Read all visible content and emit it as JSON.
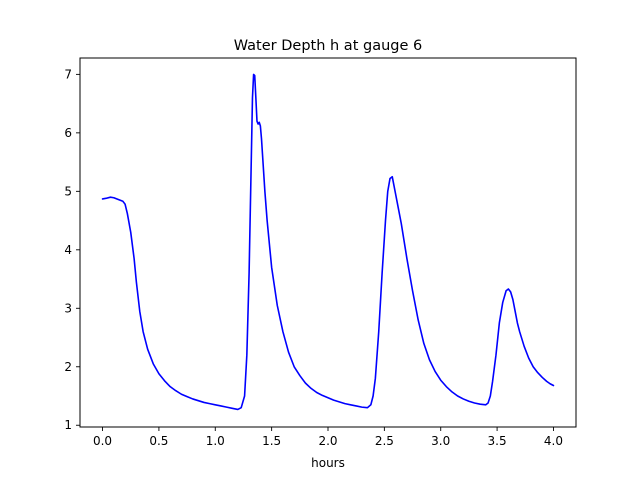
{
  "chart_data": {
    "type": "line",
    "title": "Water Depth h at gauge 6",
    "xlabel": "hours",
    "ylabel": "",
    "xlim": [
      -0.2,
      4.2
    ],
    "ylim": [
      0.97,
      7.28
    ],
    "xticks": [
      0.0,
      0.5,
      1.0,
      1.5,
      2.0,
      2.5,
      3.0,
      3.5,
      4.0
    ],
    "xtick_labels": [
      "0.0",
      "0.5",
      "1.0",
      "1.5",
      "2.0",
      "2.5",
      "3.0",
      "3.5",
      "4.0"
    ],
    "yticks": [
      1,
      2,
      3,
      4,
      5,
      6,
      7
    ],
    "ytick_labels": [
      "1",
      "2",
      "3",
      "4",
      "5",
      "6",
      "7"
    ],
    "grid": false,
    "series": [
      {
        "color": "#0000ff",
        "x": [
          0.0,
          0.03,
          0.07,
          0.1,
          0.14,
          0.18,
          0.2,
          0.22,
          0.25,
          0.28,
          0.3,
          0.33,
          0.36,
          0.4,
          0.45,
          0.5,
          0.55,
          0.6,
          0.65,
          0.7,
          0.75,
          0.8,
          0.85,
          0.9,
          0.95,
          1.0,
          1.05,
          1.1,
          1.15,
          1.2,
          1.23,
          1.26,
          1.28,
          1.3,
          1.32,
          1.33,
          1.34,
          1.35,
          1.36,
          1.37,
          1.38,
          1.39,
          1.4,
          1.41,
          1.42,
          1.44,
          1.46,
          1.5,
          1.55,
          1.6,
          1.65,
          1.7,
          1.75,
          1.8,
          1.85,
          1.9,
          1.95,
          2.0,
          2.05,
          2.1,
          2.15,
          2.2,
          2.25,
          2.3,
          2.35,
          2.38,
          2.4,
          2.42,
          2.45,
          2.48,
          2.51,
          2.53,
          2.55,
          2.57,
          2.58,
          2.6,
          2.62,
          2.65,
          2.7,
          2.75,
          2.8,
          2.85,
          2.9,
          2.95,
          3.0,
          3.05,
          3.1,
          3.15,
          3.2,
          3.25,
          3.3,
          3.35,
          3.4,
          3.42,
          3.44,
          3.46,
          3.49,
          3.52,
          3.55,
          3.58,
          3.6,
          3.62,
          3.64,
          3.66,
          3.68,
          3.7,
          3.74,
          3.78,
          3.82,
          3.86,
          3.9,
          3.94,
          3.97,
          4.0
        ],
        "y": [
          4.87,
          4.88,
          4.9,
          4.89,
          4.86,
          4.83,
          4.78,
          4.62,
          4.3,
          3.85,
          3.45,
          2.95,
          2.6,
          2.3,
          2.05,
          1.88,
          1.76,
          1.66,
          1.59,
          1.53,
          1.49,
          1.45,
          1.42,
          1.39,
          1.37,
          1.35,
          1.33,
          1.31,
          1.29,
          1.27,
          1.3,
          1.5,
          2.2,
          3.6,
          5.6,
          6.6,
          7.0,
          6.98,
          6.6,
          6.2,
          6.15,
          6.18,
          6.12,
          5.9,
          5.6,
          5.0,
          4.5,
          3.7,
          3.05,
          2.6,
          2.25,
          2.0,
          1.85,
          1.72,
          1.63,
          1.56,
          1.51,
          1.47,
          1.43,
          1.4,
          1.37,
          1.35,
          1.33,
          1.31,
          1.3,
          1.35,
          1.5,
          1.8,
          2.6,
          3.6,
          4.5,
          5.0,
          5.22,
          5.25,
          5.15,
          4.95,
          4.75,
          4.45,
          3.85,
          3.3,
          2.8,
          2.4,
          2.12,
          1.92,
          1.77,
          1.66,
          1.57,
          1.5,
          1.45,
          1.41,
          1.38,
          1.36,
          1.35,
          1.38,
          1.5,
          1.75,
          2.2,
          2.75,
          3.1,
          3.3,
          3.33,
          3.28,
          3.15,
          2.95,
          2.75,
          2.6,
          2.35,
          2.15,
          2.0,
          1.9,
          1.82,
          1.75,
          1.71,
          1.68
        ]
      }
    ]
  }
}
